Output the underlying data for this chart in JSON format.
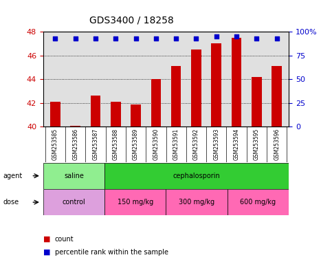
{
  "title": "GDS3400 / 18258",
  "samples": [
    "GSM253585",
    "GSM253586",
    "GSM253587",
    "GSM253588",
    "GSM253589",
    "GSM253590",
    "GSM253591",
    "GSM253592",
    "GSM253593",
    "GSM253594",
    "GSM253595",
    "GSM253596"
  ],
  "counts": [
    42.1,
    40.05,
    42.6,
    42.1,
    41.85,
    44.0,
    45.1,
    46.5,
    47.0,
    47.5,
    44.2,
    45.1
  ],
  "percentile_ranks": [
    93,
    93,
    93,
    93,
    93,
    93,
    93,
    93,
    95,
    95,
    93,
    93
  ],
  "ylim_left": [
    40,
    48
  ],
  "ylim_right": [
    0,
    100
  ],
  "yticks_left": [
    40,
    42,
    44,
    46,
    48
  ],
  "yticks_right": [
    0,
    25,
    50,
    75,
    100
  ],
  "ytick_labels_right": [
    "0",
    "25",
    "50",
    "75",
    "100%"
  ],
  "bar_color": "#cc0000",
  "dot_color": "#0000cc",
  "grid_color": "#000000",
  "plot_bg_color": "#e0e0e0",
  "agent_row": [
    {
      "label": "saline",
      "start": 0,
      "end": 3,
      "color": "#90ee90"
    },
    {
      "label": "cephalosporin",
      "start": 3,
      "end": 12,
      "color": "#33cc33"
    }
  ],
  "dose_row": [
    {
      "label": "control",
      "start": 0,
      "end": 3,
      "color": "#dda0dd"
    },
    {
      "label": "150 mg/kg",
      "start": 3,
      "end": 6,
      "color": "#ff69b4"
    },
    {
      "label": "300 mg/kg",
      "start": 6,
      "end": 9,
      "color": "#ff69b4"
    },
    {
      "label": "600 mg/kg",
      "start": 9,
      "end": 12,
      "color": "#ff69b4"
    }
  ],
  "legend_count_color": "#cc0000",
  "legend_dot_color": "#0000cc",
  "legend_count_label": "count",
  "legend_dot_label": "percentile rank within the sample"
}
